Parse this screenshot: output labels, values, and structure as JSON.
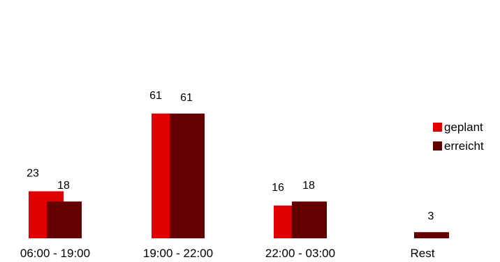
{
  "chart_data": {
    "type": "bar",
    "categories": [
      "06:00 - 19:00",
      "19:00 - 22:00",
      "22:00 - 03:00",
      "Rest"
    ],
    "series": [
      {
        "name": "geplant",
        "values": [
          23,
          61,
          16,
          0
        ],
        "color": "#e00000"
      },
      {
        "name": "erreicht",
        "values": [
          18,
          61,
          18,
          3
        ],
        "color": "#650000"
      }
    ],
    "data_labels": [
      [
        "23",
        "61",
        "16",
        ""
      ],
      [
        "18",
        "61",
        "18",
        "3"
      ]
    ],
    "ylim": [
      0,
      61
    ],
    "grid": false,
    "legend": "right"
  }
}
